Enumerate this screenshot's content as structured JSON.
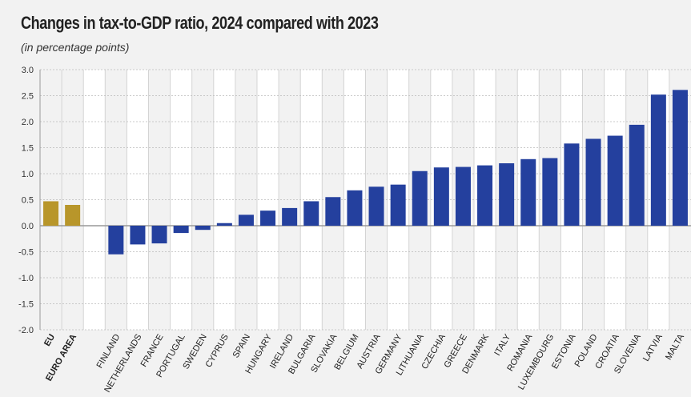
{
  "title": "Changes in tax-to-GDP ratio, 2024 compared with 2023",
  "subtitle": "(in percentage points)",
  "colors": {
    "aggregate": "#b8962a",
    "country": "#24409e"
  },
  "chart_data": {
    "type": "bar",
    "title": "Changes in tax-to-GDP ratio, 2024 compared with 2023",
    "subtitle": "(in percentage points)",
    "ylim": [
      -2.0,
      3.0
    ],
    "yticks": [
      "3.0",
      "2.5",
      "2.0",
      "1.5",
      "1.0",
      "0.5",
      "0.0",
      "-0.5",
      "-1.0",
      "-1.5",
      "-2.0"
    ],
    "grid": true,
    "categories": [
      "EU",
      "EURO AREA",
      "",
      "FINLAND",
      "NETHERLANDS",
      "FRANCE",
      "PORTUGAL",
      "SWEDEN",
      "CYPRUS",
      "SPAIN",
      "HUNGARY",
      "IRELAND",
      "BULGARIA",
      "SLOVAKIA",
      "BELGIUM",
      "AUSTRIA",
      "GERMANY",
      "LITHUANIA",
      "CZECHIA",
      "GREECE",
      "DENMARK",
      "ITALY",
      "ROMANIA",
      "LUXEMBOURG",
      "ESTONIA",
      "POLAND",
      "CROATIA",
      "SLOVENIA",
      "LATVIA",
      "MALTA"
    ],
    "values": [
      0.47,
      0.4,
      null,
      -0.55,
      -0.36,
      -0.34,
      -0.14,
      -0.08,
      0.05,
      0.21,
      0.29,
      0.34,
      0.47,
      0.55,
      0.68,
      0.75,
      0.79,
      1.05,
      1.12,
      1.13,
      1.16,
      1.2,
      1.28,
      1.3,
      1.58,
      1.67,
      1.73,
      1.94,
      2.52,
      2.61
    ]
  }
}
